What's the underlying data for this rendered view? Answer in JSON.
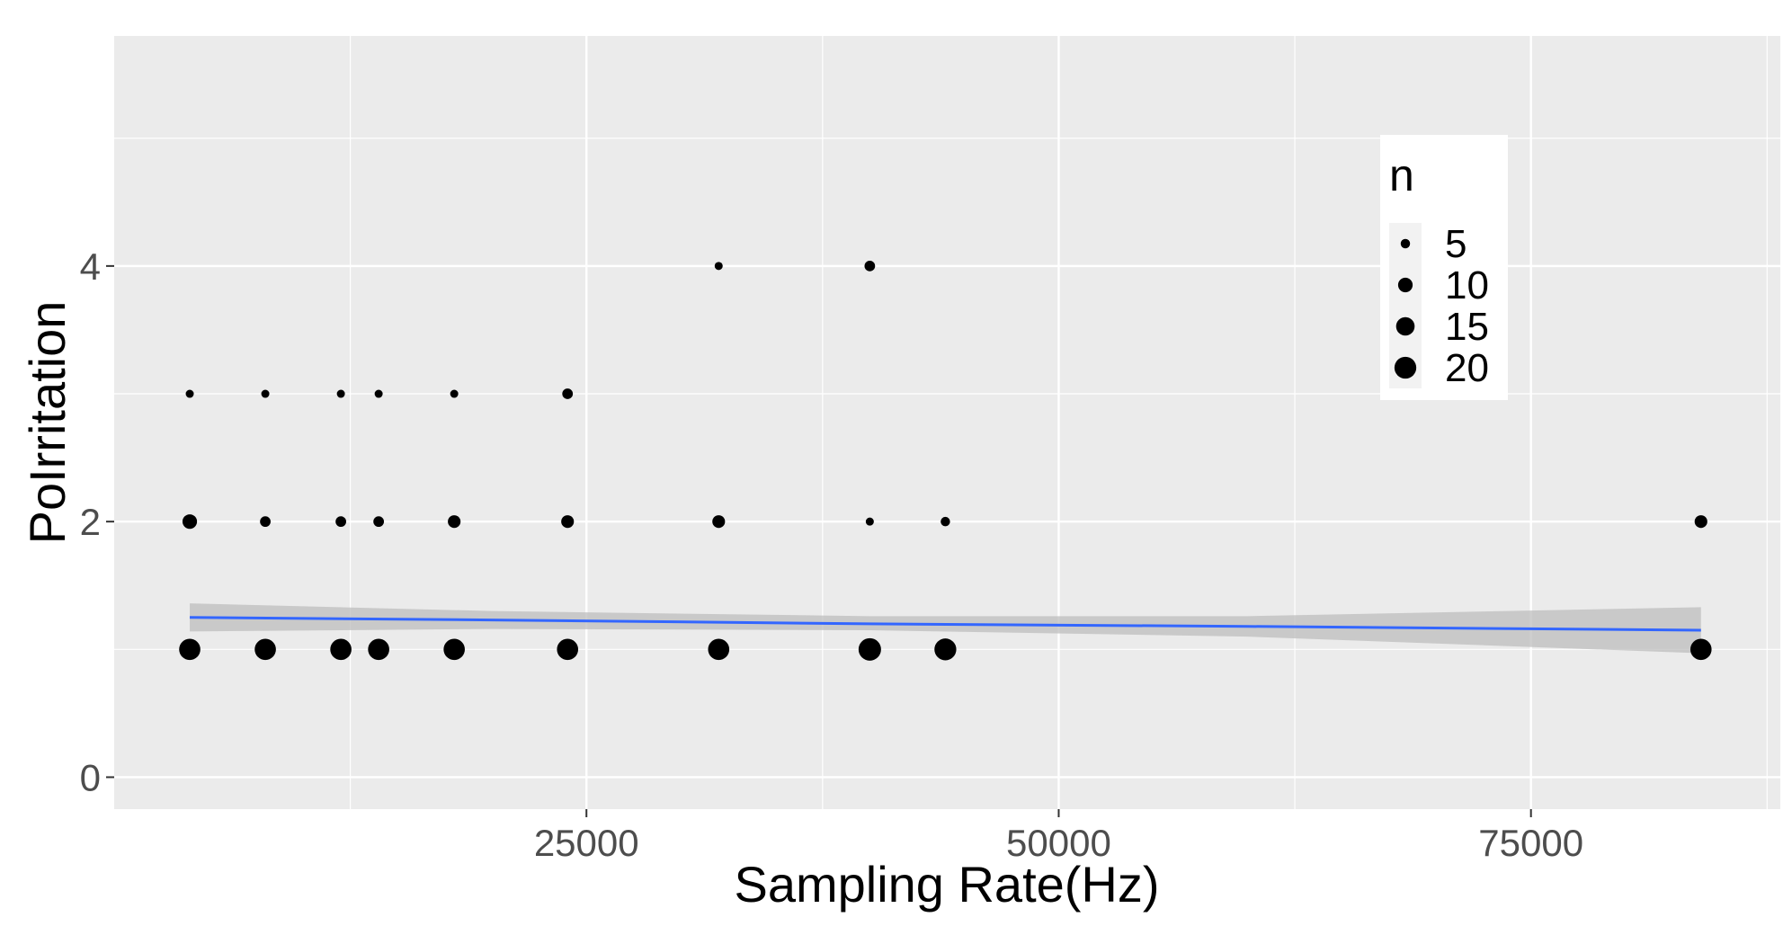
{
  "chart_data": {
    "type": "scatter",
    "title": "",
    "xlabel": "Sampling Rate(Hz)",
    "ylabel": "PoIrritation",
    "xlim": [
      0,
      88200
    ],
    "ylim": [
      -0.25,
      5.8
    ],
    "x_ticks": [
      25000,
      50000,
      75000
    ],
    "x_tick_labels": [
      "25000",
      "50000",
      "75000"
    ],
    "y_ticks": [
      0,
      2,
      4
    ],
    "y_tick_labels": [
      "0",
      "2",
      "4"
    ],
    "grid": true,
    "size_legend": {
      "title": "n",
      "entries": [
        {
          "label": "5",
          "value": 5
        },
        {
          "label": "10",
          "value": 10
        },
        {
          "label": "15",
          "value": 15
        },
        {
          "label": "20",
          "value": 20
        }
      ],
      "placement": "top-right inside plot"
    },
    "points": [
      {
        "x": 4000,
        "y": 1,
        "n": 19
      },
      {
        "x": 4000,
        "y": 2,
        "n": 10
      },
      {
        "x": 4000,
        "y": 3,
        "n": 4
      },
      {
        "x": 8000,
        "y": 1,
        "n": 19
      },
      {
        "x": 8000,
        "y": 2,
        "n": 6
      },
      {
        "x": 8000,
        "y": 3,
        "n": 4
      },
      {
        "x": 12000,
        "y": 1,
        "n": 19
      },
      {
        "x": 12000,
        "y": 2,
        "n": 6
      },
      {
        "x": 12000,
        "y": 3,
        "n": 4
      },
      {
        "x": 14000,
        "y": 1,
        "n": 19
      },
      {
        "x": 14000,
        "y": 2,
        "n": 6
      },
      {
        "x": 14000,
        "y": 3,
        "n": 4
      },
      {
        "x": 18000,
        "y": 1,
        "n": 19
      },
      {
        "x": 18000,
        "y": 2,
        "n": 8
      },
      {
        "x": 18000,
        "y": 3,
        "n": 4
      },
      {
        "x": 24000,
        "y": 1,
        "n": 19
      },
      {
        "x": 24000,
        "y": 2,
        "n": 8
      },
      {
        "x": 24000,
        "y": 3,
        "n": 6
      },
      {
        "x": 32000,
        "y": 1,
        "n": 19
      },
      {
        "x": 32000,
        "y": 2,
        "n": 8
      },
      {
        "x": 32000,
        "y": 4,
        "n": 4
      },
      {
        "x": 40000,
        "y": 1,
        "n": 21
      },
      {
        "x": 40000,
        "y": 2,
        "n": 4
      },
      {
        "x": 40000,
        "y": 4,
        "n": 6
      },
      {
        "x": 44000,
        "y": 1,
        "n": 20
      },
      {
        "x": 44000,
        "y": 2,
        "n": 5
      },
      {
        "x": 84000,
        "y": 1,
        "n": 19
      },
      {
        "x": 84000,
        "y": 2,
        "n": 8
      }
    ],
    "trend": {
      "method": "linear smooth with confidence band",
      "line_color": "#3366ff",
      "band_color": "#bebebe",
      "points": [
        {
          "x": 4000,
          "y": 1.25,
          "lo": 1.14,
          "hi": 1.36
        },
        {
          "x": 20000,
          "y": 1.23,
          "lo": 1.16,
          "hi": 1.3
        },
        {
          "x": 40000,
          "y": 1.2,
          "lo": 1.15,
          "hi": 1.26
        },
        {
          "x": 60000,
          "y": 1.18,
          "lo": 1.1,
          "hi": 1.26
        },
        {
          "x": 84000,
          "y": 1.15,
          "lo": 0.97,
          "hi": 1.33
        }
      ]
    },
    "colors": {
      "panel_background": "#ebebeb",
      "grid_major": "#ffffff",
      "point": "#000000",
      "legend_key_background": "#f2f2f2"
    }
  }
}
